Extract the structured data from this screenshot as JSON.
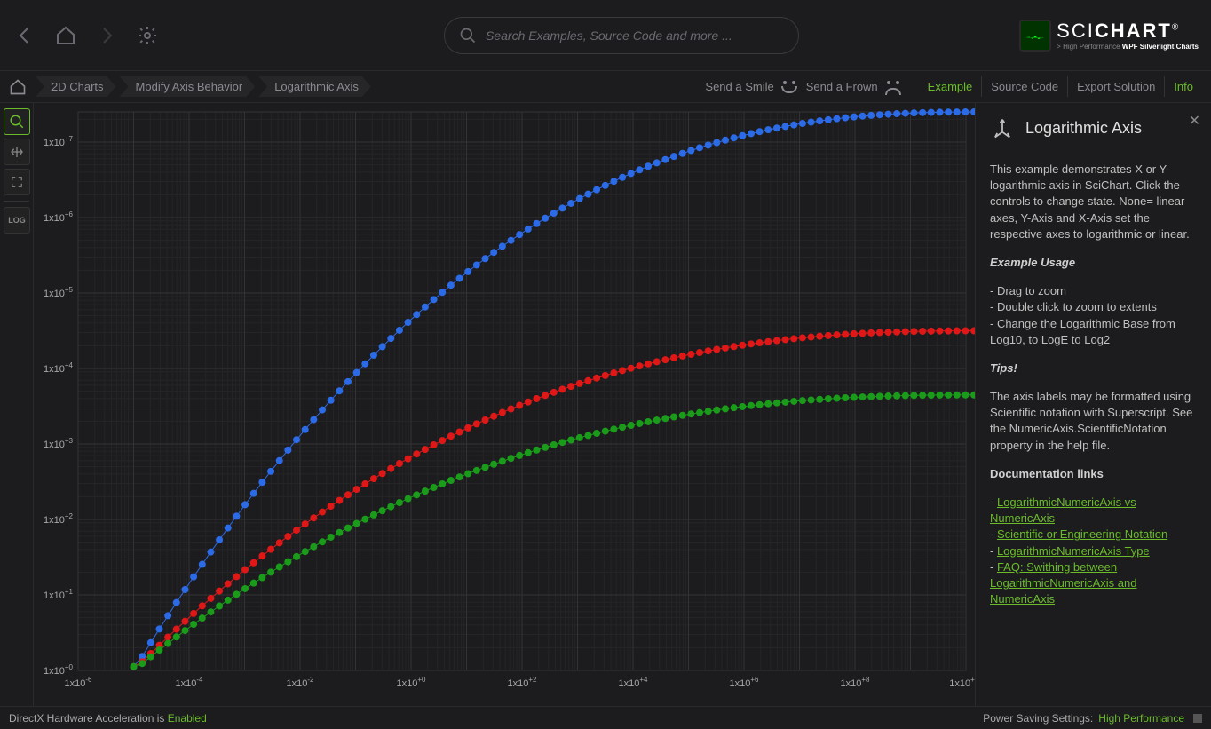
{
  "search": {
    "placeholder": "Search Examples, Source Code and more ..."
  },
  "logo": {
    "brand": "SCICHART",
    "tagline_prefix": "> High Performance ",
    "tagline_bold": "WPF Silverlight Charts"
  },
  "breadcrumb": [
    "2D Charts",
    "Modify Axis Behavior",
    "Logarithmic Axis"
  ],
  "feedback": {
    "smile": "Send a Smile",
    "frown": "Send a Frown"
  },
  "tabs": [
    "Example",
    "Source Code",
    "Export Solution",
    "Info"
  ],
  "active_tab": 0,
  "toolbar": {
    "log_label": "LOG"
  },
  "info": {
    "title": "Logarithmic Axis",
    "intro": "This example demonstrates X or Y logarithmic axis in SciChart. Click the controls to change state. None= linear axes, Y-Axis and X-Axis set the respective axes to logarithmic or linear.",
    "usage_h": "Example Usage",
    "usage1": " - Drag to zoom",
    "usage2": " - Double click to zoom to extents",
    "usage3": " - Change the Logarithmic Base from Log10, to LogE to Log2",
    "tips_h": "Tips!",
    "tips_body": "The axis labels may be formatted using Scientific notation with Superscript. See the NumericAxis.ScientificNotation property in the help file.",
    "docs_h": "Documentation links",
    "links": [
      "LogarithmicNumericAxis vs NumericAxis",
      "Scientific or Engineering Notation",
      "LogarithmicNumericAxis Type",
      "FAQ: Swithing between LogarithmicNumericAxis and NumericAxis"
    ]
  },
  "status": {
    "left_prefix": "DirectX Hardware Acceleration is ",
    "left_value": "Enabled",
    "right_prefix": "Power Saving Settings: ",
    "right_value": "High Performance"
  },
  "chart": {
    "background": "#1c1c1e",
    "grid_major": "#333336",
    "grid_minor": "#252528",
    "label_color": "#a8a8ac",
    "x_axis": {
      "min_exp": -6,
      "max_exp": 10,
      "tick_step": 2,
      "scale": "log",
      "label_base": "1x10"
    },
    "y_axis": {
      "min_exp": 0,
      "max_exp": 7,
      "tick_step": 1,
      "scale": "log",
      "label_base": "1x10"
    },
    "series": [
      {
        "name": "blue",
        "color": "#2c6be8",
        "marker_r": 4,
        "line_w": 1,
        "amplitude_exp": 7.4
      },
      {
        "name": "red",
        "color": "#e01717",
        "marker_r": 4,
        "line_w": 1,
        "amplitude_exp": 4.5
      },
      {
        "name": "green",
        "color": "#1a9c1a",
        "marker_r": 4,
        "line_w": 1,
        "amplitude_exp": 3.65
      }
    ],
    "points_per_series": 100
  }
}
